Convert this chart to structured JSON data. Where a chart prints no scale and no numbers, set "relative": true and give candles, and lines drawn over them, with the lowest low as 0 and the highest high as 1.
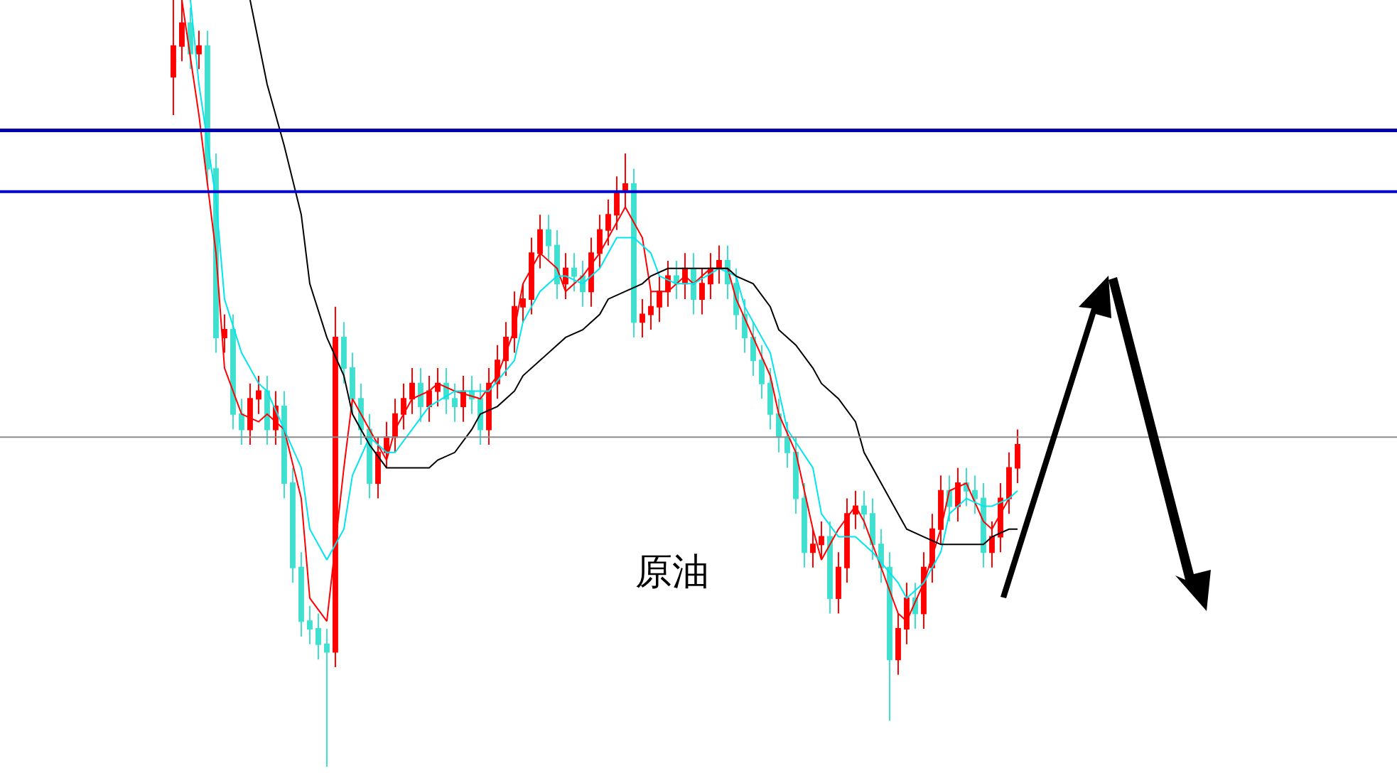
{
  "chart_data": {
    "type": "candlestick",
    "relative": true,
    "categories": [
      null,
      null,
      null,
      null,
      null,
      null,
      null,
      null,
      null,
      null,
      null,
      null,
      null,
      null,
      null,
      null,
      null,
      null,
      null,
      null,
      null,
      null,
      null,
      null,
      null,
      null,
      null,
      null,
      null,
      null,
      null,
      null,
      null,
      null,
      null,
      null,
      null,
      null,
      null,
      null,
      null,
      null,
      null,
      null,
      null,
      null,
      null,
      null,
      null,
      null,
      null,
      null,
      null,
      null,
      null,
      null,
      null,
      null,
      null,
      null,
      null,
      null,
      null,
      null,
      null,
      null,
      null,
      null,
      null,
      null,
      null,
      null,
      null,
      null,
      null,
      null,
      null,
      null,
      null,
      null,
      null,
      null,
      null,
      null,
      null,
      null,
      null,
      null,
      null,
      null,
      null,
      null,
      null,
      null,
      null,
      null,
      null,
      null,
      null,
      null
    ],
    "ohlc": [
      [
        0.9,
        1.0,
        0.85,
        0.94
      ],
      [
        0.94,
        1.0,
        0.92,
        0.97
      ],
      [
        0.97,
        0.99,
        0.91,
        0.93
      ],
      [
        0.93,
        0.96,
        0.91,
        0.94
      ],
      [
        0.94,
        0.96,
        0.76,
        0.78
      ],
      [
        0.78,
        0.8,
        0.54,
        0.56
      ],
      [
        0.56,
        0.59,
        0.54,
        0.57
      ],
      [
        0.57,
        0.59,
        0.44,
        0.46
      ],
      [
        0.46,
        0.48,
        0.42,
        0.44
      ],
      [
        0.44,
        0.5,
        0.42,
        0.48
      ],
      [
        0.48,
        0.51,
        0.46,
        0.49
      ],
      [
        0.49,
        0.51,
        0.42,
        0.44
      ],
      [
        0.44,
        0.49,
        0.42,
        0.47
      ],
      [
        0.47,
        0.49,
        0.35,
        0.37
      ],
      [
        0.37,
        0.39,
        0.24,
        0.26
      ],
      [
        0.26,
        0.28,
        0.17,
        0.19
      ],
      [
        0.19,
        0.21,
        0.16,
        0.18
      ],
      [
        0.18,
        0.2,
        0.14,
        0.16
      ],
      [
        0.16,
        0.18,
        0.0,
        0.15
      ],
      [
        0.15,
        0.6,
        0.13,
        0.56
      ],
      [
        0.56,
        0.58,
        0.5,
        0.52
      ],
      [
        0.52,
        0.54,
        0.46,
        0.48
      ],
      [
        0.48,
        0.5,
        0.42,
        0.44
      ],
      [
        0.44,
        0.46,
        0.35,
        0.37
      ],
      [
        0.37,
        0.43,
        0.35,
        0.41
      ],
      [
        0.41,
        0.45,
        0.39,
        0.43
      ],
      [
        0.43,
        0.48,
        0.41,
        0.46
      ],
      [
        0.46,
        0.5,
        0.44,
        0.48
      ],
      [
        0.48,
        0.52,
        0.46,
        0.5
      ],
      [
        0.5,
        0.52,
        0.45,
        0.47
      ],
      [
        0.47,
        0.51,
        0.45,
        0.49
      ],
      [
        0.49,
        0.52,
        0.47,
        0.5
      ],
      [
        0.5,
        0.52,
        0.46,
        0.48
      ],
      [
        0.48,
        0.5,
        0.45,
        0.47
      ],
      [
        0.47,
        0.51,
        0.45,
        0.49
      ],
      [
        0.49,
        0.51,
        0.46,
        0.48
      ],
      [
        0.48,
        0.5,
        0.42,
        0.44
      ],
      [
        0.44,
        0.52,
        0.42,
        0.5
      ],
      [
        0.5,
        0.55,
        0.48,
        0.53
      ],
      [
        0.53,
        0.58,
        0.51,
        0.56
      ],
      [
        0.56,
        0.62,
        0.54,
        0.6
      ],
      [
        0.6,
        0.63,
        0.58,
        0.61
      ],
      [
        0.61,
        0.69,
        0.59,
        0.67
      ],
      [
        0.67,
        0.72,
        0.65,
        0.7
      ],
      [
        0.7,
        0.72,
        0.66,
        0.68
      ],
      [
        0.68,
        0.7,
        0.61,
        0.63
      ],
      [
        0.63,
        0.67,
        0.61,
        0.65
      ],
      [
        0.65,
        0.67,
        0.62,
        0.64
      ],
      [
        0.64,
        0.66,
        0.6,
        0.62
      ],
      [
        0.62,
        0.69,
        0.6,
        0.67
      ],
      [
        0.67,
        0.72,
        0.65,
        0.7
      ],
      [
        0.7,
        0.74,
        0.68,
        0.72
      ],
      [
        0.72,
        0.77,
        0.7,
        0.75
      ],
      [
        0.75,
        0.8,
        0.73,
        0.76
      ],
      [
        0.76,
        0.78,
        0.56,
        0.58
      ],
      [
        0.58,
        0.61,
        0.56,
        0.59
      ],
      [
        0.59,
        0.62,
        0.57,
        0.6
      ],
      [
        0.6,
        0.64,
        0.58,
        0.62
      ],
      [
        0.62,
        0.66,
        0.6,
        0.64
      ],
      [
        0.64,
        0.66,
        0.61,
        0.63
      ],
      [
        0.63,
        0.67,
        0.61,
        0.65
      ],
      [
        0.65,
        0.67,
        0.59,
        0.61
      ],
      [
        0.61,
        0.65,
        0.59,
        0.63
      ],
      [
        0.63,
        0.67,
        0.61,
        0.65
      ],
      [
        0.65,
        0.68,
        0.63,
        0.66
      ],
      [
        0.66,
        0.68,
        0.61,
        0.63
      ],
      [
        0.63,
        0.65,
        0.57,
        0.59
      ],
      [
        0.59,
        0.61,
        0.54,
        0.56
      ],
      [
        0.56,
        0.58,
        0.51,
        0.53
      ],
      [
        0.53,
        0.55,
        0.48,
        0.5
      ],
      [
        0.5,
        0.52,
        0.44,
        0.46
      ],
      [
        0.46,
        0.48,
        0.41,
        0.43
      ],
      [
        0.43,
        0.45,
        0.39,
        0.41
      ],
      [
        0.41,
        0.43,
        0.33,
        0.35
      ],
      [
        0.35,
        0.37,
        0.26,
        0.28
      ],
      [
        0.28,
        0.31,
        0.26,
        0.29
      ],
      [
        0.29,
        0.32,
        0.27,
        0.3
      ],
      [
        0.3,
        0.32,
        0.2,
        0.22
      ],
      [
        0.22,
        0.28,
        0.2,
        0.26
      ],
      [
        0.26,
        0.35,
        0.24,
        0.33
      ],
      [
        0.33,
        0.36,
        0.31,
        0.34
      ],
      [
        0.34,
        0.36,
        0.31,
        0.33
      ],
      [
        0.33,
        0.35,
        0.27,
        0.29
      ],
      [
        0.29,
        0.31,
        0.24,
        0.26
      ],
      [
        0.26,
        0.28,
        0.06,
        0.14
      ],
      [
        0.14,
        0.2,
        0.12,
        0.18
      ],
      [
        0.18,
        0.24,
        0.16,
        0.22
      ],
      [
        0.22,
        0.24,
        0.18,
        0.2
      ],
      [
        0.2,
        0.28,
        0.18,
        0.26
      ],
      [
        0.26,
        0.33,
        0.24,
        0.31
      ],
      [
        0.31,
        0.38,
        0.29,
        0.36
      ],
      [
        0.36,
        0.38,
        0.32,
        0.34
      ],
      [
        0.34,
        0.39,
        0.32,
        0.37
      ],
      [
        0.37,
        0.39,
        0.34,
        0.36
      ],
      [
        0.36,
        0.38,
        0.33,
        0.35
      ],
      [
        0.35,
        0.37,
        0.26,
        0.28
      ],
      [
        0.28,
        0.32,
        0.26,
        0.3
      ],
      [
        0.3,
        0.37,
        0.28,
        0.35
      ],
      [
        0.35,
        0.41,
        0.33,
        0.39
      ],
      [
        0.39,
        0.44,
        0.37,
        0.42
      ]
    ],
    "series": [
      {
        "type": "line",
        "color": "#ff0000",
        "values": [
          null,
          1.0,
          null,
          0.85,
          null,
          0.67,
          0.52,
          null,
          0.46,
          null,
          0.45,
          0.46,
          null,
          0.44,
          null,
          0.35,
          0.22,
          null,
          0.19,
          null,
          0.39,
          0.48,
          null,
          0.44,
          null,
          0.4,
          0.44,
          null,
          0.48,
          null,
          0.49,
          0.5,
          null,
          0.49,
          null,
          null,
          0.48,
          null,
          0.51,
          null,
          0.57,
          0.63,
          null,
          0.67,
          null,
          0.65,
          0.62,
          null,
          0.64,
          null,
          0.67,
          0.69,
          null,
          0.73,
          null,
          0.69,
          0.62,
          null,
          0.62,
          null,
          0.64,
          0.63,
          null,
          0.65,
          null,
          0.65,
          0.61,
          null,
          0.56,
          null,
          0.51,
          0.46,
          null,
          0.41,
          null,
          0.31,
          0.27,
          null,
          0.31,
          null,
          0.34,
          0.32,
          null,
          0.26,
          null,
          0.2,
          0.19,
          null,
          0.24,
          null,
          0.31,
          0.36,
          null,
          0.37,
          null,
          0.32,
          0.31,
          null,
          0.35,
          null
        ]
      },
      {
        "type": "line",
        "color": "#00e5ee",
        "values": [
          null,
          null,
          1.0,
          0.89,
          null,
          0.74,
          0.61,
          null,
          0.54,
          null,
          0.5,
          0.49,
          null,
          0.44,
          null,
          0.39,
          0.31,
          null,
          0.27,
          null,
          0.31,
          0.38,
          null,
          0.43,
          null,
          0.41,
          0.41,
          null,
          0.44,
          null,
          0.47,
          null,
          null,
          0.49,
          null,
          null,
          0.49,
          0.49,
          null,
          null,
          0.53,
          0.58,
          null,
          0.62,
          null,
          0.64,
          0.64,
          null,
          0.63,
          null,
          0.65,
          null,
          0.69,
          null,
          0.69,
          null,
          0.67,
          0.64,
          null,
          0.63,
          null,
          0.63,
          null,
          null,
          0.65,
          null,
          0.64,
          0.6,
          null,
          null,
          0.54,
          null,
          0.44,
          null,
          null,
          0.39,
          0.33,
          null,
          0.3,
          null,
          0.3,
          null,
          0.28,
          null,
          null,
          0.24,
          0.22,
          null,
          0.24,
          null,
          0.28,
          0.33,
          null,
          0.35,
          null,
          0.34,
          0.34,
          null,
          0.35,
          0.36
        ]
      },
      {
        "type": "line",
        "color": "#000000",
        "values": [
          null,
          null,
          null,
          null,
          null,
          null,
          null,
          null,
          null,
          1.0,
          null,
          0.89,
          null,
          0.81,
          null,
          0.72,
          0.63,
          null,
          0.56,
          null,
          0.51,
          0.46,
          null,
          0.42,
          null,
          0.39,
          0.39,
          null,
          0.39,
          null,
          0.39,
          0.4,
          null,
          0.41,
          null,
          0.44,
          0.46,
          null,
          0.47,
          null,
          0.49,
          0.51,
          null,
          0.53,
          null,
          0.55,
          0.56,
          null,
          0.57,
          null,
          0.59,
          0.61,
          null,
          0.62,
          null,
          0.63,
          0.64,
          null,
          0.65,
          null,
          null,
          0.65,
          null,
          null,
          null,
          0.65,
          0.64,
          null,
          0.63,
          null,
          0.6,
          0.57,
          null,
          0.55,
          null,
          0.52,
          0.5,
          null,
          0.48,
          null,
          0.45,
          0.41,
          null,
          0.37,
          null,
          0.33,
          0.31,
          null,
          0.3,
          null,
          0.29,
          0.29,
          null,
          0.29,
          null,
          0.29,
          0.3,
          null,
          0.31,
          0.31
        ]
      }
    ],
    "ref_lines": [
      {
        "axis": "y",
        "value": 0.83,
        "color": "#0000b0"
      },
      {
        "axis": "y",
        "value": 0.75,
        "color": "#0000c8"
      },
      {
        "axis": "y",
        "value": 0.43,
        "color": "#8c8c8c"
      }
    ],
    "annotations": [
      "原油"
    ]
  }
}
